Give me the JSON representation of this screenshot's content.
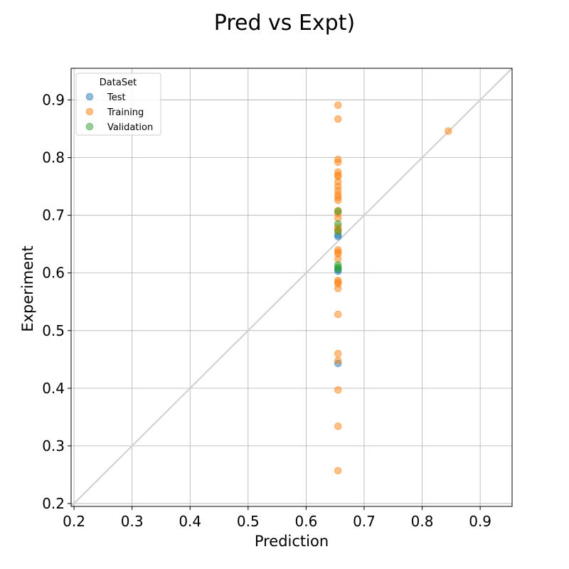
{
  "chart_data": {
    "type": "scatter",
    "title": "Pred vs Expt)",
    "xlabel": "Prediction",
    "ylabel": "Experiment",
    "xlim": [
      0.195,
      0.955
    ],
    "ylim": [
      0.195,
      0.955
    ],
    "xticks": [
      "0.2",
      "0.3",
      "0.4",
      "0.5",
      "0.6",
      "0.7",
      "0.8",
      "0.9"
    ],
    "yticks": [
      "0.2",
      "0.3",
      "0.4",
      "0.5",
      "0.6",
      "0.7",
      "0.8",
      "0.9"
    ],
    "grid": true,
    "identity_line": true,
    "legend": {
      "title": "DataSet",
      "position": "top-left"
    },
    "series": [
      {
        "name": "Test",
        "color": "#1f77b4",
        "points": [
          [
            0.655,
            0.443
          ],
          [
            0.655,
            0.603
          ],
          [
            0.655,
            0.606
          ],
          [
            0.655,
            0.663
          ],
          [
            0.655,
            0.666
          ]
        ]
      },
      {
        "name": "Training",
        "color": "#ff7f0e",
        "points": [
          [
            0.655,
            0.891
          ],
          [
            0.655,
            0.867
          ],
          [
            0.655,
            0.797
          ],
          [
            0.655,
            0.792
          ],
          [
            0.655,
            0.775
          ],
          [
            0.655,
            0.77
          ],
          [
            0.655,
            0.767
          ],
          [
            0.655,
            0.758
          ],
          [
            0.655,
            0.75
          ],
          [
            0.655,
            0.743
          ],
          [
            0.655,
            0.736
          ],
          [
            0.655,
            0.731
          ],
          [
            0.655,
            0.726
          ],
          [
            0.655,
            0.708
          ],
          [
            0.655,
            0.703
          ],
          [
            0.655,
            0.695
          ],
          [
            0.655,
            0.68
          ],
          [
            0.655,
            0.676
          ],
          [
            0.655,
            0.674
          ],
          [
            0.655,
            0.64
          ],
          [
            0.655,
            0.636
          ],
          [
            0.655,
            0.633
          ],
          [
            0.655,
            0.624
          ],
          [
            0.655,
            0.587
          ],
          [
            0.655,
            0.584
          ],
          [
            0.655,
            0.581
          ],
          [
            0.655,
            0.573
          ],
          [
            0.655,
            0.528
          ],
          [
            0.655,
            0.46
          ],
          [
            0.655,
            0.448
          ],
          [
            0.655,
            0.397
          ],
          [
            0.655,
            0.334
          ],
          [
            0.655,
            0.257
          ],
          [
            0.845,
            0.846
          ]
        ]
      },
      {
        "name": "Validation",
        "color": "#2ca02c",
        "points": [
          [
            0.655,
            0.707
          ],
          [
            0.655,
            0.685
          ],
          [
            0.655,
            0.672
          ],
          [
            0.655,
            0.614
          ],
          [
            0.655,
            0.61
          ],
          [
            0.655,
            0.607
          ]
        ]
      }
    ]
  }
}
